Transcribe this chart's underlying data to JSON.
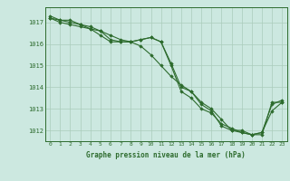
{
  "title": "Graphe pression niveau de la mer (hPa)",
  "bg_color": "#cce8e0",
  "grid_color": "#aaccbb",
  "line_color": "#2d6b2d",
  "marker_color": "#2d6b2d",
  "xlim": [
    -0.5,
    23.5
  ],
  "ylim": [
    1011.5,
    1017.7
  ],
  "yticks": [
    1012,
    1013,
    1014,
    1015,
    1016,
    1017
  ],
  "xticks": [
    0,
    1,
    2,
    3,
    4,
    5,
    6,
    7,
    8,
    9,
    10,
    11,
    12,
    13,
    14,
    15,
    16,
    17,
    18,
    19,
    20,
    21,
    22,
    23
  ],
  "series": [
    [
      1017.2,
      1017.1,
      1017.0,
      1016.9,
      1016.8,
      1016.6,
      1016.4,
      1016.2,
      1016.1,
      1015.9,
      1015.5,
      1015.0,
      1014.5,
      1014.1,
      1013.8,
      1013.3,
      1013.0,
      1012.5,
      1012.0,
      1012.0,
      1011.8,
      1011.8,
      1013.3,
      1013.3
    ],
    [
      1017.2,
      1017.0,
      1016.9,
      1016.8,
      1016.7,
      1016.6,
      1016.2,
      1016.1,
      1016.1,
      1016.2,
      1016.3,
      1016.1,
      1015.0,
      1013.8,
      1013.5,
      1013.0,
      1012.8,
      1012.3,
      1012.1,
      1011.9,
      1011.8,
      1011.9,
      1012.9,
      1013.3
    ],
    [
      1017.3,
      1017.1,
      1017.1,
      1016.9,
      1016.7,
      1016.4,
      1016.1,
      1016.1,
      1016.1,
      1016.2,
      1016.3,
      1016.1,
      1015.1,
      1014.0,
      1013.8,
      1013.2,
      1012.9,
      1012.2,
      1012.0,
      1011.9,
      1011.8,
      1011.9,
      1013.2,
      1013.4
    ]
  ]
}
